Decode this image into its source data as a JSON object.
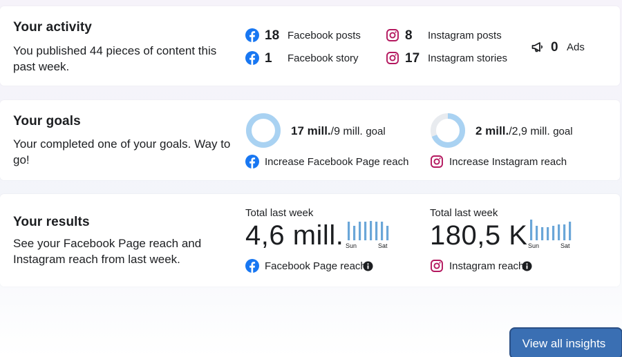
{
  "activity": {
    "title": "Your activity",
    "description": "You published 44 pieces of content this past week.",
    "stats": [
      {
        "icon": "facebook-icon",
        "value": "18",
        "label": "Facebook posts"
      },
      {
        "icon": "facebook-icon",
        "value": "1",
        "label": "Facebook story"
      },
      {
        "icon": "instagram-icon",
        "value": "8",
        "label": "Instagram posts"
      },
      {
        "icon": "instagram-icon",
        "value": "17",
        "label": "Instagram stories"
      },
      {
        "icon": "megaphone-icon",
        "value": "0",
        "label": "Ads"
      }
    ]
  },
  "goals": {
    "title": "Your goals",
    "description": "Your completed one of your goals. Way to go!",
    "items": [
      {
        "current": "17 mill.",
        "target": "/9 mill.",
        "suffix": "goal",
        "label": "Increase Facebook Page reach",
        "icon": "facebook-icon",
        "progress": 1.0
      },
      {
        "current": "2 mill.",
        "target": "/2,9 mill.",
        "suffix": "goal",
        "label": "Increase Instagram reach",
        "icon": "instagram-icon",
        "progress": 0.69
      }
    ]
  },
  "results": {
    "title": "Your results",
    "description": "See your Facebook Page reach and Instagram reach from last week.",
    "items": [
      {
        "total_label": "Total last week",
        "value": "4,6 mill.",
        "label": "Facebook Page reach",
        "icon": "facebook-icon",
        "day_start": "Sun",
        "day_end": "Sat"
      },
      {
        "total_label": "Total last week",
        "value": "180,5 K",
        "label": "Instagram reach",
        "icon": "instagram-icon",
        "day_start": "Sun",
        "day_end": "Sat"
      }
    ]
  },
  "footer": {
    "view_all_label": "View all insights"
  },
  "colors": {
    "facebook": "#1877f2",
    "instagram": "#b4185f",
    "ring_fill": "#a9d2f2",
    "ring_track": "#e8ebef",
    "spark": "#6aa6d8",
    "button": "#3a6fb3"
  }
}
